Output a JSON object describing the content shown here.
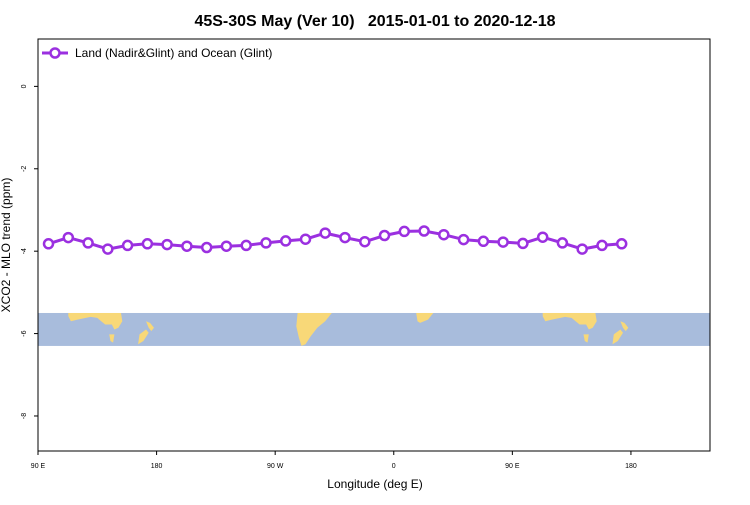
{
  "chart_data": {
    "type": "line",
    "title": "45S-30S May (Ver 10)   2015-01-01 to 2020-12-18",
    "xlabel": "Longitude (deg E)",
    "ylabel": "XCO2 - MLO trend (ppm)",
    "xlim": [
      90,
      600
    ],
    "ylim": [
      -8.85,
      1.15
    ],
    "x_ticks": [
      {
        "value": 90,
        "label": "90 E"
      },
      {
        "value": 180,
        "label": "180"
      },
      {
        "value": 270,
        "label": "90 W"
      },
      {
        "value": 360,
        "label": "0"
      },
      {
        "value": 450,
        "label": "90 E"
      },
      {
        "value": 540,
        "label": "180"
      }
    ],
    "y_ticks": [
      {
        "value": 0,
        "label": "0"
      },
      {
        "value": -2,
        "label": "-2"
      },
      {
        "value": -4,
        "label": "-4"
      },
      {
        "value": -6,
        "label": "-6"
      },
      {
        "value": -8,
        "label": "-8"
      }
    ],
    "legend_position": "top-left",
    "series": [
      {
        "name": "Land (Nadir&Glint) and Ocean (Glint)",
        "color": "#9b30e0",
        "x": [
          98,
          113,
          128,
          143,
          158,
          173,
          188,
          203,
          218,
          233,
          248,
          263,
          278,
          293,
          308,
          323,
          338,
          353,
          368,
          383,
          398,
          413,
          428,
          443,
          458,
          473,
          488,
          503,
          518,
          533
        ],
        "y": [
          -3.82,
          -3.67,
          -3.8,
          -3.95,
          -3.86,
          -3.82,
          -3.84,
          -3.88,
          -3.91,
          -3.88,
          -3.86,
          -3.8,
          -3.75,
          -3.71,
          -3.56,
          -3.67,
          -3.77,
          -3.62,
          -3.52,
          -3.51,
          -3.6,
          -3.72,
          -3.76,
          -3.78,
          -3.81,
          -3.66,
          -3.8,
          -3.95,
          -3.86,
          -3.82
        ]
      }
    ],
    "map_strip": {
      "ocean_color": "#a8bcdc",
      "land_color": "#f8d878",
      "y_range": [
        -6.3,
        -5.5
      ]
    }
  }
}
